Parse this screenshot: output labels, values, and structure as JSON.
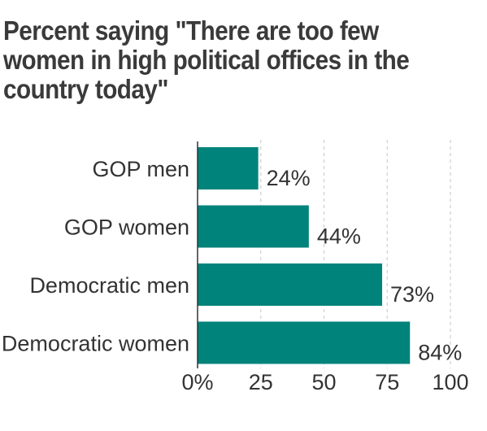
{
  "chart_data": {
    "type": "bar",
    "orientation": "horizontal",
    "title": "Percent saying \"There are too few women in high political offices in the country today\"",
    "categories": [
      "GOP men",
      "GOP women",
      "Democratic men",
      "Democratic women"
    ],
    "values": [
      24,
      44,
      73,
      84
    ],
    "value_labels": [
      "24%",
      "44%",
      "73%",
      "84%"
    ],
    "xlim": [
      0,
      100
    ],
    "x_ticks": [
      0,
      25,
      50,
      75,
      100
    ],
    "x_tick_labels": [
      "0%",
      "25",
      "50",
      "75",
      "100"
    ],
    "grid": "vertical dashed",
    "bar_color": "#00837B",
    "grid_color": "#cfcfcf",
    "axis_color": "#333333",
    "text_color": "#333333"
  }
}
